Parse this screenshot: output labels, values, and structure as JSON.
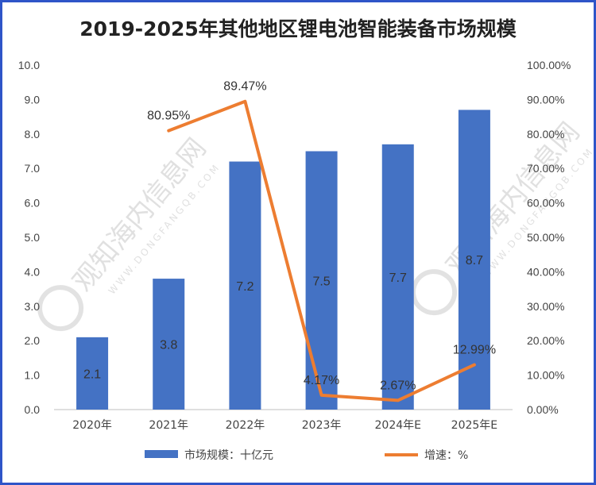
{
  "chart_data": {
    "type": "bar",
    "title": "2019-2025年其他地区锂电池智能装备市场规模",
    "categories": [
      "2020年",
      "2021年",
      "2022年",
      "2023年",
      "2024年E",
      "2025年E"
    ],
    "series": [
      {
        "name": "市场规模：十亿元",
        "kind": "bar",
        "axis": "left",
        "color": "#4472C4",
        "values": [
          2.1,
          3.8,
          7.2,
          7.5,
          7.7,
          8.7
        ],
        "data_labels": [
          "2.1",
          "3.8",
          "7.2",
          "7.5",
          "7.7",
          "8.7"
        ]
      },
      {
        "name": "增速：%",
        "kind": "line",
        "axis": "right",
        "color": "#ED7D31",
        "values": [
          null,
          80.95,
          89.47,
          4.17,
          2.67,
          12.99
        ],
        "data_labels": [
          "",
          "80.95%",
          "89.47%",
          "4.17%",
          "2.67%",
          "12.99%"
        ]
      }
    ],
    "ylim": [
      0,
      10
    ],
    "y2lim": [
      0,
      100
    ],
    "y_ticks": [
      "0.0",
      "1.0",
      "2.0",
      "3.0",
      "4.0",
      "5.0",
      "6.0",
      "7.0",
      "8.0",
      "9.0",
      "10.0"
    ],
    "y2_ticks": [
      "0.00%",
      "10.00%",
      "20.00%",
      "30.00%",
      "40.00%",
      "50.00%",
      "60.00%",
      "70.00%",
      "80.00%",
      "90.00%",
      "100.00%"
    ],
    "grid": false,
    "legend_position": "bottom"
  },
  "watermark": {
    "text": "观知海内信息网",
    "url": "WWW.DONGFANGQB.COM"
  }
}
